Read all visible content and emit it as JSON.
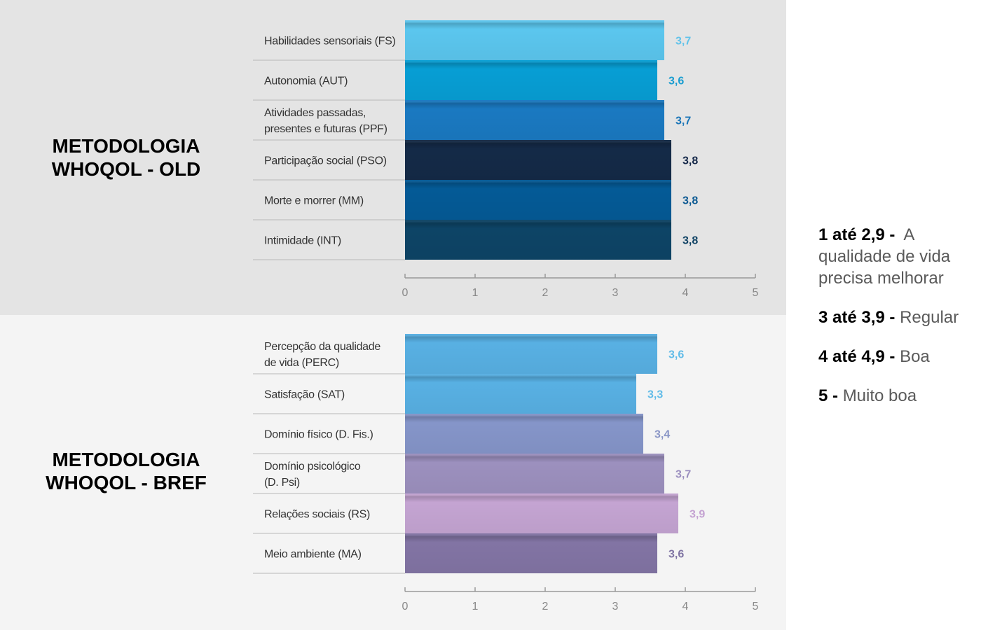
{
  "charts": [
    {
      "title_lines": [
        "METODOLOGIA",
        "WHOQOL - OLD"
      ],
      "chart_data": {
        "type": "bar",
        "orientation": "horizontal",
        "categories": [
          "Habilidades sensoriais (FS)",
          "Autonomia (AUT)",
          "Atividades passadas,\npresentes e futuras (PPF)",
          "Participação social (PSO)",
          "Morte e morrer (MM)",
          "Intimidade (INT)"
        ],
        "values": [
          3.7,
          3.6,
          3.7,
          3.8,
          3.8,
          3.8
        ],
        "value_labels": [
          "3,7",
          "3,6",
          "3,7",
          "3,8",
          "3,8",
          "3,8"
        ],
        "colors": [
          "#5bc6ee",
          "#079ed4",
          "#1a79c1",
          "#142a47",
          "#045a96",
          "#0d4466"
        ],
        "label_colors": [
          "#62c3ea",
          "#1a9dd0",
          "#1b76b8",
          "#16294a",
          "#0c5a93",
          "#0f4264"
        ],
        "xlim": [
          0,
          5
        ],
        "x_ticks": [
          "0",
          "1",
          "2",
          "3",
          "4",
          "5"
        ]
      }
    },
    {
      "title_lines": [
        "METODOLOGIA",
        "WHOQOL - BREF"
      ],
      "chart_data": {
        "type": "bar",
        "orientation": "horizontal",
        "categories": [
          "Percepção da qualidade\nde vida (PERC)",
          "Satisfação (SAT)",
          "Domínio físico (D. Fis.)",
          "Domínio psicológico\n(D. Psi)",
          "Relações sociais (RS)",
          "Meio ambiente (MA)"
        ],
        "values": [
          3.6,
          3.3,
          3.4,
          3.7,
          3.9,
          3.6
        ],
        "value_labels": [
          "3,6",
          "3,3",
          "3,4",
          "3,7",
          "3,9",
          "3,6"
        ],
        "colors": [
          "#58b0e3",
          "#58b0e3",
          "#8595c9",
          "#9c90be",
          "#c4a4d2",
          "#8274a4"
        ],
        "label_colors": [
          "#62bce8",
          "#62bce8",
          "#8a96c6",
          "#9b8fbf",
          "#c4a2d2",
          "#7f74a3"
        ],
        "xlim": [
          0,
          5
        ],
        "x_ticks": [
          "0",
          "1",
          "2",
          "3",
          "4",
          "5"
        ]
      }
    }
  ],
  "legend": [
    {
      "range": "1 até 2,9 -",
      "description": "A qualidade de vida precisa melhorar"
    },
    {
      "range": "3 até 3,9 -",
      "description": "Regular"
    },
    {
      "range": "4 até 4,9 -",
      "description": "Boa"
    },
    {
      "range": "5 -",
      "description": "Muito boa"
    }
  ]
}
